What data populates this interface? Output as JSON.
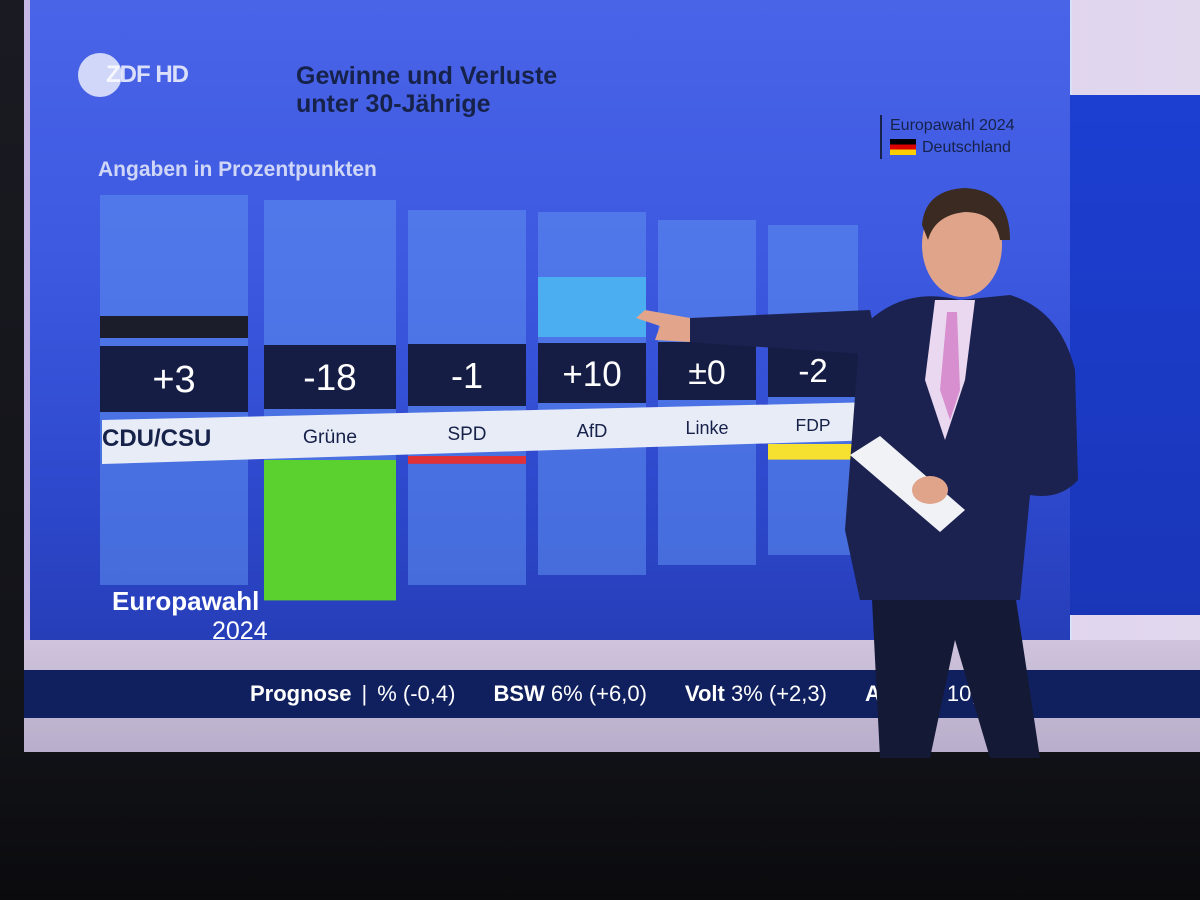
{
  "broadcaster": {
    "logo_text": "ZDF HD"
  },
  "chart_data": {
    "type": "bar",
    "title": "Gewinne und Verluste\nunter 30-Jährige",
    "subtitle": "Angaben in Prozentpunkten",
    "categories": [
      "CDU/CSU",
      "Grüne",
      "SPD",
      "AfD",
      "Linke",
      "FDP"
    ],
    "values": [
      3,
      -18,
      -1,
      10,
      0,
      -2
    ],
    "value_labels": [
      "+3",
      "-18",
      "-1",
      "+10",
      "±0",
      "-2"
    ],
    "colors": [
      "#1b1d2b",
      "#5ad12f",
      "#e03038",
      "#4aaef0",
      "#9d4ab0",
      "#f6e030"
    ],
    "ylim": [
      -18,
      10
    ],
    "grid": false,
    "legend": "none"
  },
  "election_tag": {
    "name": "Europawahl",
    "year": "2024",
    "region": "Deutschland"
  },
  "bottom_brand": {
    "line1": "Europawahl",
    "line2": "2024"
  },
  "ticker": {
    "label": "Prognose",
    "first_item": "% (-0,4)",
    "items": [
      {
        "party": "BSW",
        "value": "6%",
        "change": "(+6,0)"
      },
      {
        "party": "Volt",
        "value": "3%",
        "change": "(+2,3)"
      },
      {
        "party": "Andere",
        "value": "10,5%",
        "change": "(-"
      }
    ]
  }
}
